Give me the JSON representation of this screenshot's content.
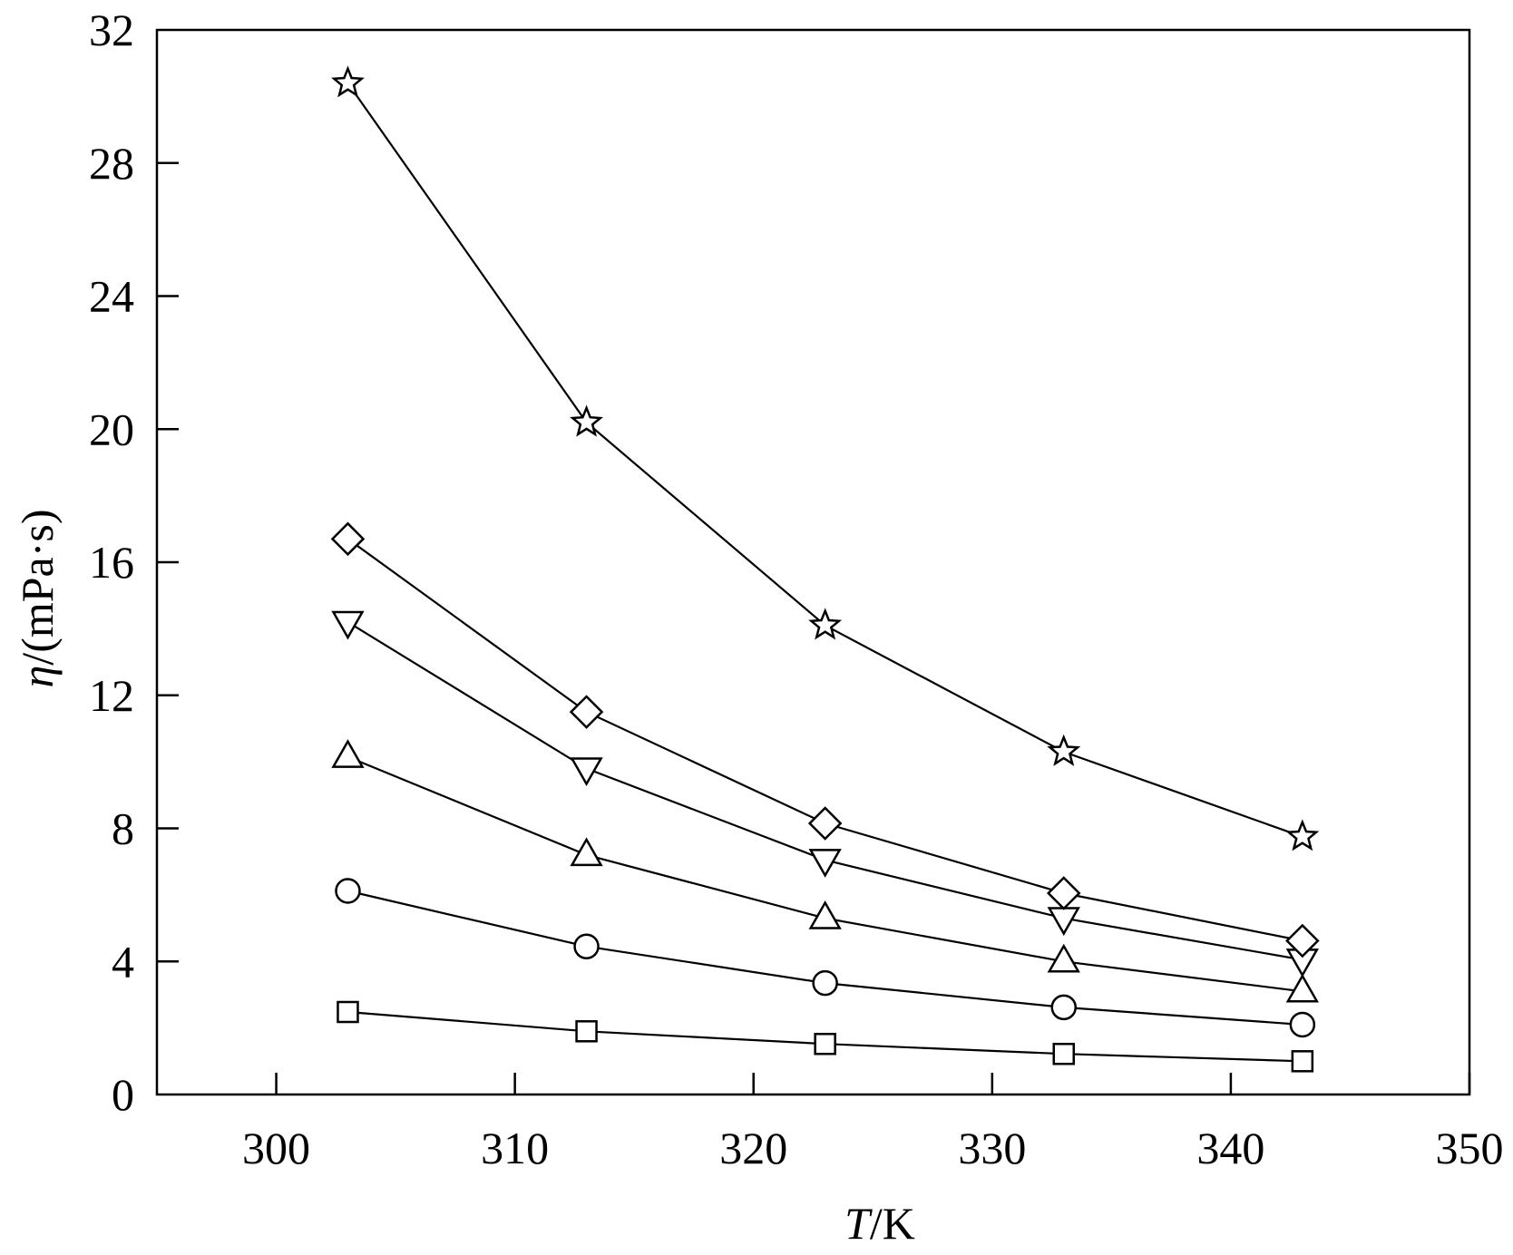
{
  "chart_data": {
    "type": "line",
    "xlabel_var": "T",
    "xlabel_unit": "/K",
    "ylabel_var": "η",
    "ylabel_unit": "/(mPa·s)",
    "xlim": [
      295,
      350
    ],
    "ylim": [
      0,
      32
    ],
    "xticks": [
      300,
      310,
      320,
      330,
      340,
      350
    ],
    "yticks": [
      0,
      4,
      8,
      12,
      16,
      20,
      24,
      28,
      32
    ],
    "x": [
      303,
      313,
      323,
      333,
      343
    ],
    "grid": false,
    "series": [
      {
        "marker": "square",
        "values": [
          2.48,
          1.9,
          1.52,
          1.22,
          1.0
        ]
      },
      {
        "marker": "circle",
        "values": [
          6.12,
          4.45,
          3.35,
          2.62,
          2.1
        ]
      },
      {
        "marker": "triangle-up",
        "values": [
          10.15,
          7.2,
          5.3,
          4.0,
          3.1
        ]
      },
      {
        "marker": "triangle-down",
        "values": [
          14.2,
          9.8,
          7.05,
          5.3,
          4.05
        ]
      },
      {
        "marker": "diamond",
        "values": [
          16.7,
          11.5,
          8.15,
          6.05,
          4.62
        ]
      },
      {
        "marker": "star",
        "values": [
          30.4,
          20.2,
          14.1,
          10.3,
          7.75
        ]
      }
    ]
  }
}
